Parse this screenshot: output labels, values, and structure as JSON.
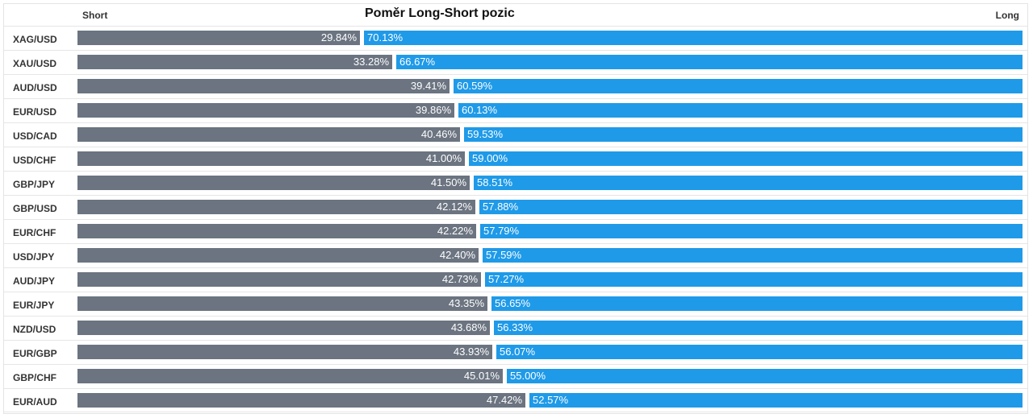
{
  "header": {
    "short_label": "Short",
    "title": "Poměr Long-Short pozic",
    "long_label": "Long"
  },
  "colors": {
    "short": "#6b7480",
    "long": "#1f9ae8"
  },
  "chart_data": {
    "type": "bar",
    "title": "Poměr Long-Short pozic",
    "categories": [
      "XAG/USD",
      "XAU/USD",
      "AUD/USD",
      "EUR/USD",
      "USD/CAD",
      "USD/CHF",
      "GBP/JPY",
      "GBP/USD",
      "EUR/CHF",
      "USD/JPY",
      "AUD/JPY",
      "EUR/JPY",
      "NZD/USD",
      "EUR/GBP",
      "GBP/CHF",
      "EUR/AUD"
    ],
    "series": [
      {
        "name": "Short",
        "values": [
          29.84,
          33.28,
          39.41,
          39.86,
          40.46,
          41.0,
          41.5,
          42.12,
          42.22,
          42.4,
          42.73,
          43.35,
          43.68,
          43.93,
          45.01,
          47.42
        ],
        "labels": [
          "29.84%",
          "33.28%",
          "39.41%",
          "39.86%",
          "40.46%",
          "41.00%",
          "41.50%",
          "42.12%",
          "42.22%",
          "42.40%",
          "42.73%",
          "43.35%",
          "43.68%",
          "43.93%",
          "45.01%",
          "47.42%"
        ]
      },
      {
        "name": "Long",
        "values": [
          70.13,
          66.67,
          60.59,
          60.13,
          59.53,
          59.0,
          58.51,
          57.88,
          57.79,
          57.59,
          57.27,
          56.65,
          56.33,
          56.07,
          55.0,
          52.57
        ],
        "labels": [
          "70.13%",
          "66.67%",
          "60.59%",
          "60.13%",
          "59.53%",
          "59.00%",
          "58.51%",
          "57.88%",
          "57.79%",
          "57.59%",
          "57.27%",
          "56.65%",
          "56.33%",
          "56.07%",
          "55.00%",
          "52.57%"
        ]
      }
    ],
    "stacked": true,
    "orientation": "horizontal",
    "xlim": [
      0,
      100
    ],
    "grid": false,
    "legend": "top"
  }
}
